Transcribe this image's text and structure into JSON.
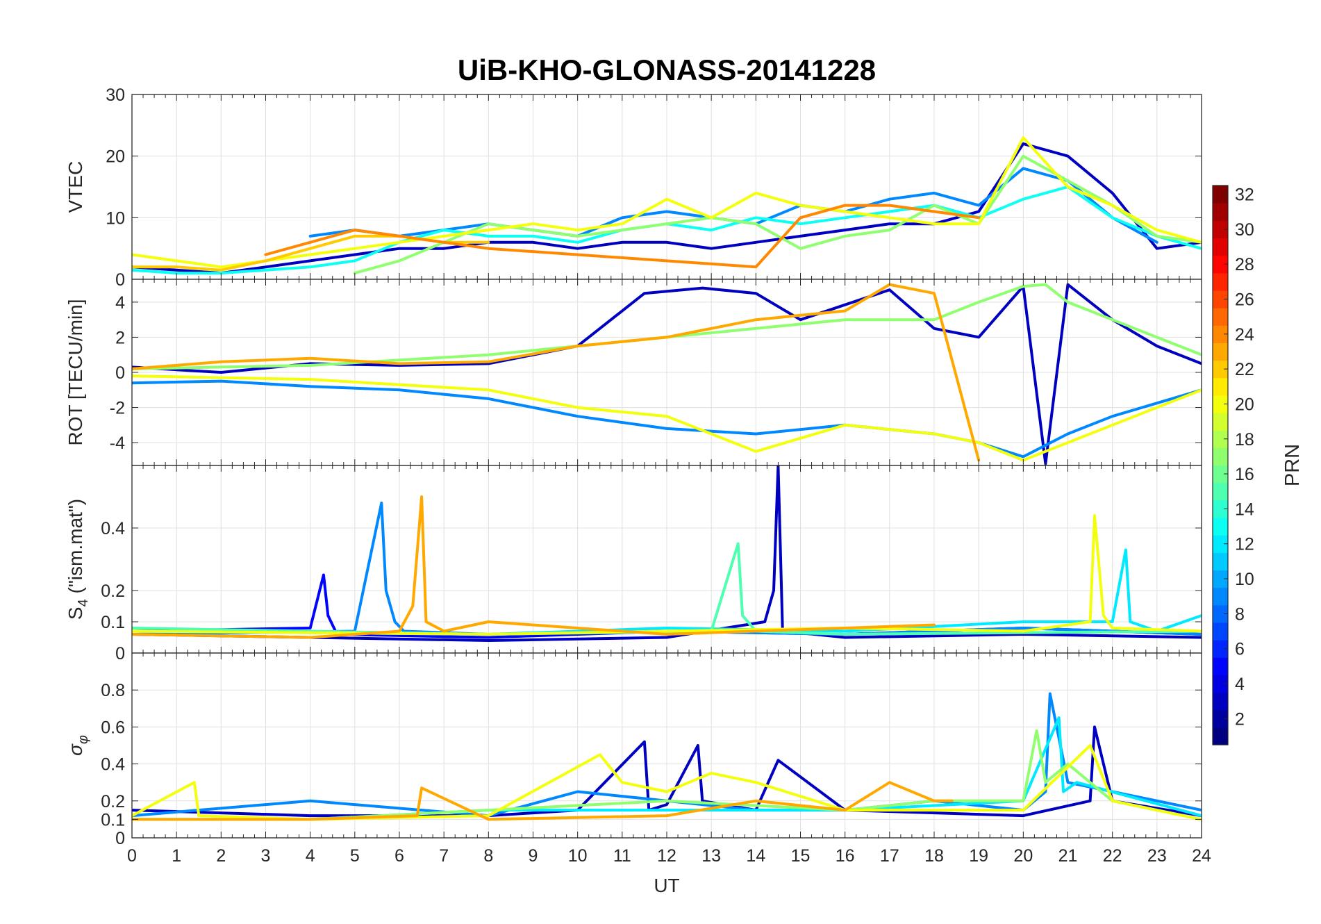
{
  "figure": {
    "title": "UiB-KHO-GLONASS-20141228",
    "xlabel": "UT"
  },
  "chart_data": [
    {
      "type": "line",
      "ylabel": "VTEC",
      "ylim": [
        0,
        30
      ],
      "yticks": [
        0,
        10,
        20,
        30
      ],
      "xlim": [
        0,
        24
      ],
      "grid": true,
      "series": [
        {
          "prn": 3,
          "x": [
            0,
            1,
            2,
            3,
            4,
            5,
            6,
            7,
            8,
            9,
            10,
            11,
            12,
            13,
            14,
            15,
            16,
            17,
            18,
            19,
            20,
            21,
            22,
            23,
            24
          ],
          "y": [
            2,
            1.5,
            1,
            2,
            3,
            4,
            5,
            5,
            6,
            6,
            5,
            6,
            6,
            5,
            6,
            7,
            8,
            9,
            9,
            11,
            22,
            20,
            14,
            5,
            6
          ]
        },
        {
          "prn": 9,
          "x": [
            4,
            5,
            6,
            7,
            8,
            9,
            10,
            11,
            12,
            13,
            14,
            15,
            16,
            17,
            18,
            19,
            20,
            21,
            22,
            23
          ],
          "y": [
            7,
            8,
            7,
            8,
            9,
            8,
            7,
            10,
            11,
            10,
            9,
            12,
            11,
            13,
            14,
            12,
            18,
            16,
            10,
            6
          ]
        },
        {
          "prn": 13,
          "x": [
            0,
            1,
            2,
            3,
            4,
            5,
            6,
            7,
            8,
            9,
            10,
            11,
            12,
            13,
            14,
            15,
            16,
            17,
            18,
            19,
            20,
            21,
            22,
            23,
            24
          ],
          "y": [
            1.5,
            1,
            1,
            1.5,
            2,
            3,
            6,
            8,
            7,
            7,
            6,
            8,
            9,
            8,
            10,
            9,
            10,
            11,
            12,
            10,
            13,
            15,
            10,
            7,
            5
          ]
        },
        {
          "prn": 17,
          "x": [
            5,
            6,
            7,
            8,
            9,
            10,
            11,
            12,
            13,
            14,
            15,
            16,
            17,
            18,
            19,
            20,
            21,
            22,
            23,
            24
          ],
          "y": [
            1,
            3,
            6,
            9,
            8,
            7,
            8,
            9,
            10,
            9,
            5,
            7,
            8,
            12,
            9,
            20,
            16,
            12,
            7,
            6
          ]
        },
        {
          "prn": 20,
          "x": [
            0,
            1,
            2,
            3,
            4,
            5,
            6,
            7,
            8,
            9,
            10,
            11,
            12,
            13,
            14,
            15,
            16,
            17,
            18,
            19,
            20,
            21,
            22,
            23,
            24
          ],
          "y": [
            4,
            3,
            2,
            3,
            4,
            5,
            6,
            7,
            8,
            9,
            8,
            9,
            13,
            10,
            14,
            12,
            11,
            10,
            9,
            9,
            23,
            15,
            12,
            8,
            6
          ]
        },
        {
          "prn": 22,
          "x": [
            0,
            1,
            2,
            3,
            4,
            5,
            6,
            7,
            8
          ],
          "y": [
            2,
            2,
            1.5,
            3,
            5,
            7,
            7,
            6,
            6
          ]
        },
        {
          "prn": 24,
          "x": [
            3,
            4,
            5,
            6,
            7,
            8,
            14,
            15,
            16,
            17,
            18,
            19
          ],
          "y": [
            4,
            6,
            8,
            7,
            6,
            5,
            2,
            10,
            12,
            12,
            11,
            10
          ]
        }
      ]
    },
    {
      "type": "line",
      "ylabel": "ROT [TECU/min]",
      "ylim": [
        -5.3,
        5.3
      ],
      "yticks": [
        -4,
        -2,
        0,
        2,
        4
      ],
      "xlim": [
        0,
        24
      ],
      "grid": true,
      "series": [
        {
          "prn": 3,
          "x": [
            0,
            2,
            4,
            6,
            8,
            10,
            11.5,
            12.8,
            14,
            15,
            17,
            18,
            19,
            20,
            20.5,
            21,
            22,
            23,
            24
          ],
          "y": [
            0.3,
            0,
            0.5,
            0.4,
            0.5,
            1.5,
            4.5,
            4.8,
            4.5,
            3.0,
            4.7,
            2.5,
            2.0,
            4.9,
            -5.2,
            5.0,
            3.0,
            1.5,
            0.5
          ]
        },
        {
          "prn": 9,
          "x": [
            0,
            2,
            4,
            6,
            8,
            10,
            12,
            14,
            16,
            18,
            19,
            20,
            21,
            22,
            24
          ],
          "y": [
            -0.6,
            -0.5,
            -0.8,
            -1.0,
            -1.5,
            -2.5,
            -3.2,
            -3.5,
            -3.0,
            -3.5,
            -4.0,
            -4.8,
            -3.5,
            -2.5,
            -1.0
          ]
        },
        {
          "prn": 17,
          "x": [
            0,
            4,
            8,
            10,
            12,
            14,
            16,
            18,
            19,
            20,
            20.5,
            21,
            22,
            24
          ],
          "y": [
            0.2,
            0.4,
            1.0,
            1.5,
            2.0,
            2.5,
            3.0,
            3.0,
            4.0,
            4.9,
            5.0,
            4.0,
            3.0,
            1.0
          ]
        },
        {
          "prn": 20,
          "x": [
            0,
            4,
            8,
            10,
            12,
            14,
            16,
            18,
            19,
            20,
            21,
            22,
            24
          ],
          "y": [
            -0.2,
            -0.4,
            -1.0,
            -2.0,
            -2.5,
            -4.5,
            -3.0,
            -3.5,
            -4.0,
            -5.0,
            -4.0,
            -3.0,
            -1.0
          ]
        },
        {
          "prn": 23,
          "x": [
            0,
            2,
            4,
            6,
            8,
            10,
            12,
            14,
            16,
            17,
            18,
            19
          ],
          "y": [
            0.2,
            0.6,
            0.8,
            0.5,
            0.6,
            1.5,
            2.0,
            3.0,
            3.5,
            5.0,
            4.5,
            -5.0
          ]
        }
      ]
    },
    {
      "type": "line",
      "ylabel": "S4 (\"ism.mat\")",
      "ylim": [
        0,
        0.6
      ],
      "yticks": [
        0,
        0.1,
        0.2,
        0.4
      ],
      "xlim": [
        0,
        24
      ],
      "grid": true,
      "series": [
        {
          "prn": 3,
          "x": [
            0,
            4,
            8,
            12,
            14.2,
            14.4,
            14.5,
            14.6,
            16,
            20,
            24
          ],
          "y": [
            0.06,
            0.05,
            0.04,
            0.05,
            0.1,
            0.2,
            0.6,
            0.07,
            0.05,
            0.06,
            0.05
          ]
        },
        {
          "prn": 5,
          "x": [
            0,
            4,
            4.3,
            4.4,
            4.6,
            8,
            12,
            16,
            20,
            24
          ],
          "y": [
            0.07,
            0.08,
            0.25,
            0.12,
            0.06,
            0.05,
            0.07,
            0.06,
            0.08,
            0.06
          ]
        },
        {
          "prn": 9,
          "x": [
            0,
            5,
            5.6,
            5.7,
            5.9,
            6.1,
            8,
            12,
            16,
            20,
            24
          ],
          "y": [
            0.06,
            0.07,
            0.48,
            0.2,
            0.1,
            0.07,
            0.06,
            0.07,
            0.06,
            0.08,
            0.06
          ]
        },
        {
          "prn": 12,
          "x": [
            0,
            8,
            12,
            16,
            20,
            22,
            22.3,
            22.4,
            23,
            24
          ],
          "y": [
            0.07,
            0.06,
            0.08,
            0.07,
            0.1,
            0.1,
            0.33,
            0.1,
            0.07,
            0.12
          ]
        },
        {
          "prn": 15,
          "x": [
            0,
            8,
            13,
            13.6,
            13.7,
            14,
            16,
            24
          ],
          "y": [
            0.08,
            0.06,
            0.07,
            0.35,
            0.12,
            0.07,
            0.06,
            0.07
          ]
        },
        {
          "prn": 20,
          "x": [
            0,
            8,
            12,
            16,
            20,
            21.5,
            21.6,
            21.8,
            22,
            24
          ],
          "y": [
            0.07,
            0.06,
            0.07,
            0.08,
            0.07,
            0.1,
            0.44,
            0.12,
            0.08,
            0.07
          ]
        },
        {
          "prn": 23,
          "x": [
            0,
            4,
            6,
            6.3,
            6.5,
            6.6,
            7,
            8,
            12,
            16,
            18
          ],
          "y": [
            0.06,
            0.05,
            0.07,
            0.15,
            0.5,
            0.1,
            0.07,
            0.1,
            0.06,
            0.08,
            0.09
          ]
        }
      ]
    },
    {
      "type": "line",
      "ylabel": "σφ",
      "ylim": [
        0,
        1
      ],
      "yticks": [
        0,
        0.1,
        0.2,
        0.4,
        0.6,
        0.8
      ],
      "xlim": [
        0,
        24
      ],
      "grid": true,
      "series": [
        {
          "prn": 3,
          "x": [
            0,
            4,
            8,
            10,
            11.5,
            11.6,
            12,
            12.7,
            12.8,
            14,
            14.5,
            16,
            20,
            21.5,
            21.6,
            22,
            24
          ],
          "y": [
            0.15,
            0.12,
            0.12,
            0.15,
            0.52,
            0.15,
            0.18,
            0.5,
            0.2,
            0.15,
            0.42,
            0.15,
            0.12,
            0.2,
            0.6,
            0.2,
            0.12
          ]
        },
        {
          "prn": 9,
          "x": [
            0,
            4,
            8,
            10,
            12,
            14,
            16,
            18,
            20,
            20.5,
            20.6,
            21,
            24
          ],
          "y": [
            0.12,
            0.2,
            0.12,
            0.25,
            0.2,
            0.15,
            0.15,
            0.2,
            0.15,
            0.25,
            0.78,
            0.3,
            0.15
          ]
        },
        {
          "prn": 12,
          "x": [
            0,
            4,
            8,
            12,
            16,
            20,
            20.8,
            20.9,
            21.2,
            24
          ],
          "y": [
            0.1,
            0.1,
            0.15,
            0.15,
            0.15,
            0.2,
            0.65,
            0.25,
            0.3,
            0.12
          ]
        },
        {
          "prn": 17,
          "x": [
            0,
            4,
            8,
            12,
            16,
            18,
            20,
            20.3,
            20.5,
            21,
            22,
            24
          ],
          "y": [
            0.1,
            0.1,
            0.15,
            0.2,
            0.15,
            0.2,
            0.2,
            0.58,
            0.3,
            0.4,
            0.2,
            0.1
          ]
        },
        {
          "prn": 20,
          "x": [
            0,
            1.4,
            1.5,
            4,
            8,
            10.5,
            11,
            12,
            13,
            14,
            16,
            20,
            21.5,
            22,
            24
          ],
          "y": [
            0.12,
            0.3,
            0.12,
            0.1,
            0.12,
            0.45,
            0.3,
            0.25,
            0.35,
            0.3,
            0.15,
            0.15,
            0.5,
            0.2,
            0.1
          ]
        },
        {
          "prn": 23,
          "x": [
            0,
            4,
            6.4,
            6.5,
            8,
            12,
            14,
            16,
            17,
            18,
            18.4
          ],
          "y": [
            0.1,
            0.1,
            0.12,
            0.27,
            0.1,
            0.12,
            0.2,
            0.15,
            0.3,
            0.2,
            0.2
          ]
        }
      ]
    }
  ],
  "colorbar": {
    "label": "PRN",
    "range": [
      1,
      32
    ],
    "ticks": [
      2,
      4,
      6,
      8,
      10,
      12,
      14,
      16,
      18,
      20,
      22,
      24,
      26,
      28,
      30,
      32
    ],
    "colormap": "jet"
  },
  "xaxis": {
    "range": [
      0,
      24
    ],
    "ticks": [
      0,
      1,
      2,
      3,
      4,
      5,
      6,
      7,
      8,
      9,
      10,
      11,
      12,
      13,
      14,
      15,
      16,
      17,
      18,
      19,
      20,
      21,
      22,
      23,
      24
    ]
  }
}
